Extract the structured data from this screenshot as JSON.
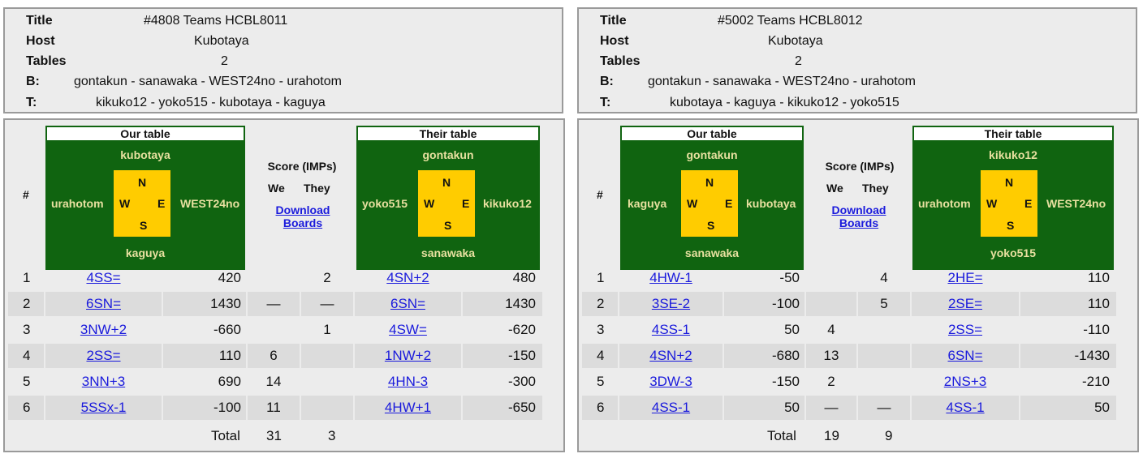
{
  "panels": [
    {
      "info": {
        "title_label": "Title",
        "title_value": "#4808 Teams HCBL8011",
        "host_label": "Host",
        "host_value": "Kubotaya",
        "tables_label": "Tables",
        "tables_value": "2",
        "b_label": "B:",
        "b_value": "gontakun - sanawaka - WEST24no - urahotom",
        "t_label": "T:",
        "t_value": "kikuko12 - yoko515 - kubotaya - kaguya"
      },
      "hash_label": "#",
      "our_table": {
        "header": "Our table",
        "north": "kubotaya",
        "south": "kaguya",
        "west": "urahotom",
        "east": "WEST24no"
      },
      "their_table": {
        "header": "Their table",
        "north": "gontakun",
        "south": "sanawaka",
        "west": "yoko515",
        "east": "kikuko12"
      },
      "compass": {
        "n": "N",
        "s": "S",
        "w": "W",
        "e": "E"
      },
      "score": {
        "header": "Score (IMPs)",
        "we": "We",
        "they": "They",
        "download_line1": "Download",
        "download_line2": "Boards"
      },
      "rows": [
        {
          "num": "1",
          "our_contract": "4SS=",
          "our_score": "420",
          "we": "",
          "they": "2",
          "their_contract": "4SN+2",
          "their_score": "480"
        },
        {
          "num": "2",
          "our_contract": "6SN=",
          "our_score": "1430",
          "we": "—",
          "they": "—",
          "their_contract": "6SN=",
          "their_score": "1430"
        },
        {
          "num": "3",
          "our_contract": "3NW+2",
          "our_score": "-660",
          "we": "",
          "they": "1",
          "their_contract": "4SW=",
          "their_score": "-620"
        },
        {
          "num": "4",
          "our_contract": "2SS=",
          "our_score": "110",
          "we": "6",
          "they": "",
          "their_contract": "1NW+2",
          "their_score": "-150"
        },
        {
          "num": "5",
          "our_contract": "3NN+3",
          "our_score": "690",
          "we": "14",
          "they": "",
          "their_contract": "4HN-3",
          "their_score": "-300"
        },
        {
          "num": "6",
          "our_contract": "5SSx-1",
          "our_score": "-100",
          "we": "11",
          "they": "",
          "their_contract": "4HW+1",
          "their_score": "-650"
        }
      ],
      "total": {
        "label": "Total",
        "we": "31",
        "they": "3"
      }
    },
    {
      "info": {
        "title_label": "Title",
        "title_value": "#5002 Teams HCBL8012",
        "host_label": "Host",
        "host_value": "Kubotaya",
        "tables_label": "Tables",
        "tables_value": "2",
        "b_label": "B:",
        "b_value": "gontakun - sanawaka - WEST24no - urahotom",
        "t_label": "T:",
        "t_value": "kubotaya - kaguya - kikuko12 - yoko515"
      },
      "hash_label": "#",
      "our_table": {
        "header": "Our table",
        "north": "gontakun",
        "south": "sanawaka",
        "west": "kaguya",
        "east": "kubotaya"
      },
      "their_table": {
        "header": "Their table",
        "north": "kikuko12",
        "south": "yoko515",
        "west": "urahotom",
        "east": "WEST24no"
      },
      "compass": {
        "n": "N",
        "s": "S",
        "w": "W",
        "e": "E"
      },
      "score": {
        "header": "Score (IMPs)",
        "we": "We",
        "they": "They",
        "download_line1": "Download",
        "download_line2": "Boards"
      },
      "rows": [
        {
          "num": "1",
          "our_contract": "4HW-1",
          "our_score": "-50",
          "we": "",
          "they": "4",
          "their_contract": "2HE=",
          "their_score": "110"
        },
        {
          "num": "2",
          "our_contract": "3SE-2",
          "our_score": "-100",
          "we": "",
          "they": "5",
          "their_contract": "2SE=",
          "their_score": "110"
        },
        {
          "num": "3",
          "our_contract": "4SS-1",
          "our_score": "50",
          "we": "4",
          "they": "",
          "their_contract": "2SS=",
          "their_score": "-110"
        },
        {
          "num": "4",
          "our_contract": "4SN+2",
          "our_score": "-680",
          "we": "13",
          "they": "",
          "their_contract": "6SN=",
          "their_score": "-1430"
        },
        {
          "num": "5",
          "our_contract": "3DW-3",
          "our_score": "-150",
          "we": "2",
          "they": "",
          "their_contract": "2NS+3",
          "their_score": "-210"
        },
        {
          "num": "6",
          "our_contract": "4SS-1",
          "our_score": "50",
          "we": "—",
          "they": "—",
          "their_contract": "4SS-1",
          "their_score": "50"
        }
      ],
      "total": {
        "label": "Total",
        "we": "19",
        "they": "9"
      }
    }
  ]
}
